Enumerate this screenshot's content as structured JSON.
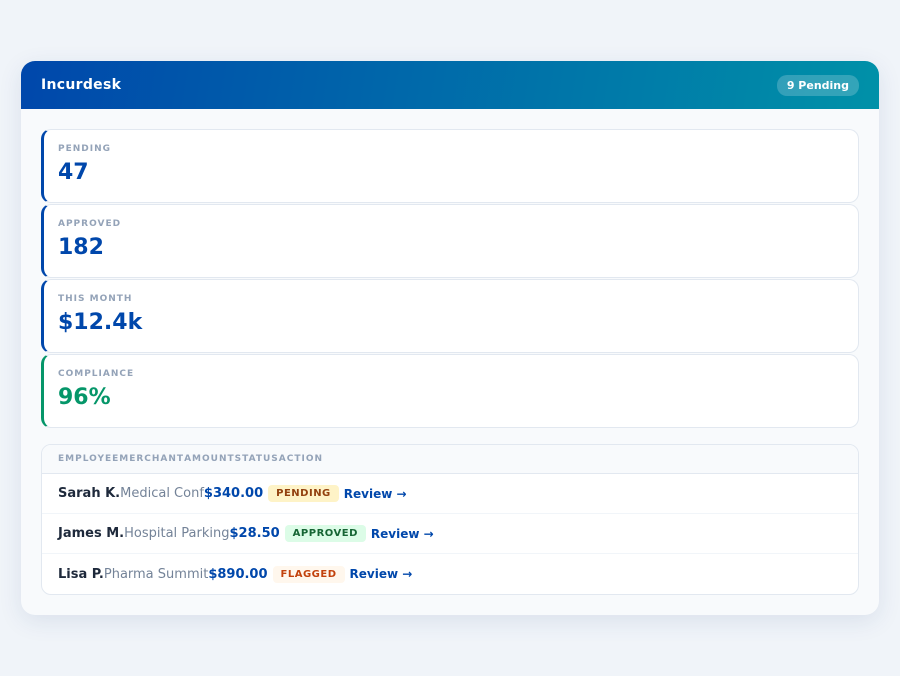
{
  "header": {
    "title": "Incurdesk",
    "badge": "9 Pending"
  },
  "stats": [
    {
      "label": "PENDING",
      "value": "47"
    },
    {
      "label": "APPROVED",
      "value": "182"
    },
    {
      "label": "THIS MONTH",
      "value": "$12.4k"
    },
    {
      "label": "COMPLIANCE",
      "value": "96%"
    }
  ],
  "table": {
    "columns": [
      "EMPLOYEE",
      "MERCHANT",
      "AMOUNT",
      "STATUS",
      "ACTION"
    ],
    "rows": [
      {
        "employee": "Sarah K.",
        "merchant": "Medical Conf",
        "amount": "$340.00",
        "status": "PENDING",
        "action": "Review →"
      },
      {
        "employee": "James M.",
        "merchant": "Hospital Parking",
        "amount": "$28.50",
        "status": "APPROVED",
        "action": "Review →"
      },
      {
        "employee": "Lisa P.",
        "merchant": "Pharma Summit",
        "amount": "$890.00",
        "status": "FLAGGED",
        "action": "Review →"
      }
    ]
  },
  "colors": {
    "accent": "#0047ab",
    "success": "#059669",
    "header_gradient_end": "#0091a8"
  }
}
